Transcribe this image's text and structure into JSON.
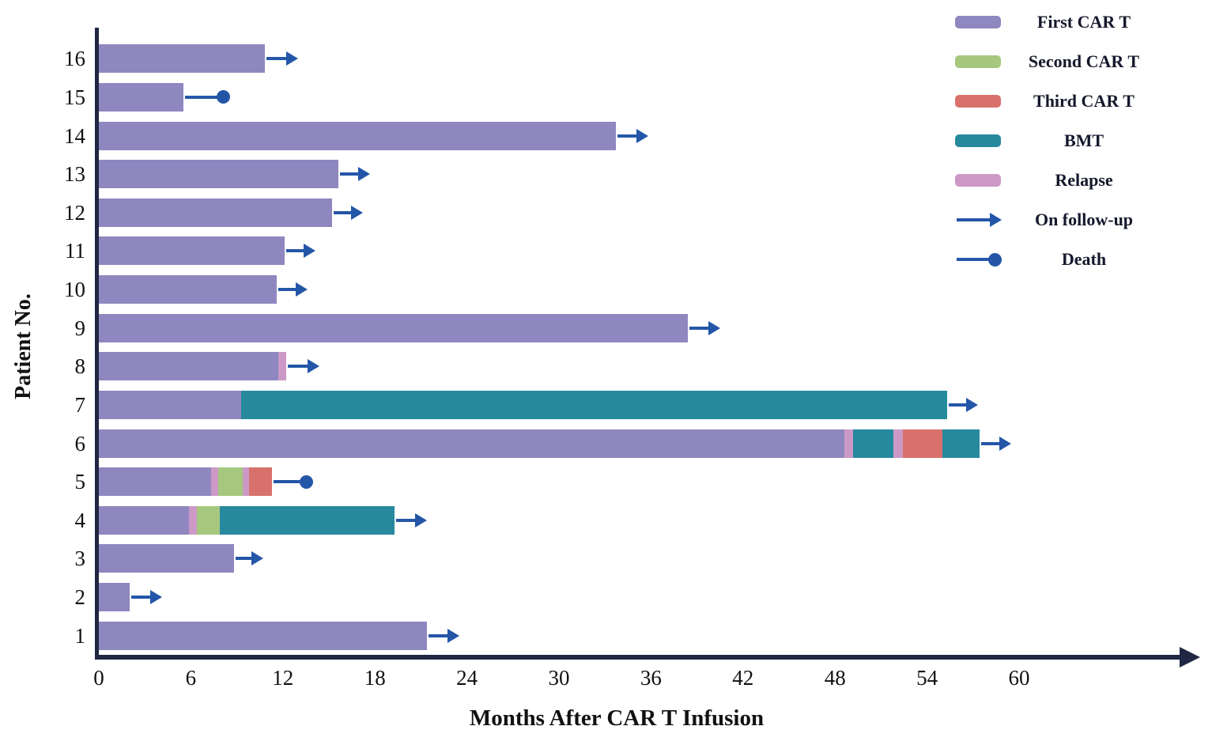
{
  "chart_data": {
    "type": "bar",
    "variant": "swimmer-plot",
    "orientation": "horizontal",
    "title": "",
    "xlabel": "Months After CAR T Infusion",
    "ylabel": "Patient No.",
    "units": "months",
    "x_axis": {
      "ticks": [
        0,
        6,
        12,
        18,
        24,
        30,
        36,
        42,
        48,
        54,
        60
      ],
      "range": [
        0,
        66
      ],
      "grid": false
    },
    "colors": {
      "first_car_t": "#8F87BF",
      "second_car_t": "#A6C87E",
      "third_car_t": "#D8716C",
      "bmt": "#27899E",
      "relapse": "#CC99C6",
      "marker": "#2456A8",
      "axis": "#1F2742"
    },
    "legend": [
      {
        "label": "First CAR T",
        "marker": "swatch",
        "color_key": "first_car_t"
      },
      {
        "label": "Second CAR T",
        "marker": "swatch",
        "color_key": "second_car_t"
      },
      {
        "label": "Third CAR T",
        "marker": "swatch",
        "color_key": "third_car_t"
      },
      {
        "label": "BMT",
        "marker": "swatch",
        "color_key": "bmt"
      },
      {
        "label": "Relapse",
        "marker": "swatch",
        "color_key": "relapse"
      },
      {
        "label": "On follow-up",
        "marker": "arrow"
      },
      {
        "label": "Death",
        "marker": "death"
      }
    ],
    "patients": [
      {
        "id": 16,
        "segments": [
          {
            "type": "first_car_t",
            "start": 0,
            "end": 10.8
          }
        ],
        "outcome": {
          "type": "follow_up",
          "at": 13.0
        }
      },
      {
        "id": 15,
        "segments": [
          {
            "type": "first_car_t",
            "start": 0,
            "end": 5.5
          }
        ],
        "outcome": {
          "type": "death",
          "at": 8.1
        }
      },
      {
        "id": 14,
        "segments": [
          {
            "type": "first_car_t",
            "start": 0,
            "end": 33.7
          }
        ],
        "outcome": {
          "type": "follow_up",
          "at": 35.8
        }
      },
      {
        "id": 13,
        "segments": [
          {
            "type": "first_car_t",
            "start": 0,
            "end": 15.6
          }
        ],
        "outcome": {
          "type": "follow_up",
          "at": 17.7
        }
      },
      {
        "id": 12,
        "segments": [
          {
            "type": "first_car_t",
            "start": 0,
            "end": 15.2
          }
        ],
        "outcome": {
          "type": "follow_up",
          "at": 17.2
        }
      },
      {
        "id": 11,
        "segments": [
          {
            "type": "first_car_t",
            "start": 0,
            "end": 12.1
          }
        ],
        "outcome": {
          "type": "follow_up",
          "at": 14.1
        }
      },
      {
        "id": 10,
        "segments": [
          {
            "type": "first_car_t",
            "start": 0,
            "end": 11.6
          }
        ],
        "outcome": {
          "type": "follow_up",
          "at": 13.6
        }
      },
      {
        "id": 9,
        "segments": [
          {
            "type": "first_car_t",
            "start": 0,
            "end": 38.4
          }
        ],
        "outcome": {
          "type": "follow_up",
          "at": 40.5
        }
      },
      {
        "id": 8,
        "segments": [
          {
            "type": "first_car_t",
            "start": 0,
            "end": 11.7
          },
          {
            "type": "relapse",
            "start": 11.7,
            "end": 12.2
          }
        ],
        "outcome": {
          "type": "follow_up",
          "at": 14.4
        }
      },
      {
        "id": 7,
        "segments": [
          {
            "type": "first_car_t",
            "start": 0,
            "end": 9.3
          },
          {
            "type": "bmt",
            "start": 9.3,
            "end": 55.3
          }
        ],
        "outcome": {
          "type": "follow_up",
          "at": 57.3
        }
      },
      {
        "id": 6,
        "segments": [
          {
            "type": "first_car_t",
            "start": 0,
            "end": 48.6
          },
          {
            "type": "relapse",
            "start": 48.6,
            "end": 49.2
          },
          {
            "type": "bmt",
            "start": 49.2,
            "end": 51.8
          },
          {
            "type": "relapse",
            "start": 51.8,
            "end": 52.4
          },
          {
            "type": "third_car_t",
            "start": 52.4,
            "end": 55.0
          },
          {
            "type": "bmt",
            "start": 55.0,
            "end": 57.4
          }
        ],
        "outcome": {
          "type": "follow_up",
          "at": 59.5
        }
      },
      {
        "id": 5,
        "segments": [
          {
            "type": "first_car_t",
            "start": 0,
            "end": 7.3
          },
          {
            "type": "relapse",
            "start": 7.3,
            "end": 7.8
          },
          {
            "type": "second_car_t",
            "start": 7.8,
            "end": 9.4
          },
          {
            "type": "relapse",
            "start": 9.4,
            "end": 9.8
          },
          {
            "type": "third_car_t",
            "start": 9.8,
            "end": 11.3
          }
        ],
        "outcome": {
          "type": "death",
          "at": 13.5
        }
      },
      {
        "id": 4,
        "segments": [
          {
            "type": "first_car_t",
            "start": 0,
            "end": 5.9
          },
          {
            "type": "relapse",
            "start": 5.9,
            "end": 6.4
          },
          {
            "type": "second_car_t",
            "start": 6.4,
            "end": 7.9
          },
          {
            "type": "bmt",
            "start": 7.9,
            "end": 19.3
          }
        ],
        "outcome": {
          "type": "follow_up",
          "at": 21.4
        }
      },
      {
        "id": 3,
        "segments": [
          {
            "type": "first_car_t",
            "start": 0,
            "end": 8.8
          }
        ],
        "outcome": {
          "type": "follow_up",
          "at": 10.7
        }
      },
      {
        "id": 2,
        "segments": [
          {
            "type": "first_car_t",
            "start": 0,
            "end": 2.0
          }
        ],
        "outcome": {
          "type": "follow_up",
          "at": 4.1
        }
      },
      {
        "id": 1,
        "segments": [
          {
            "type": "first_car_t",
            "start": 0,
            "end": 21.4
          }
        ],
        "outcome": {
          "type": "follow_up",
          "at": 23.5
        }
      }
    ]
  }
}
